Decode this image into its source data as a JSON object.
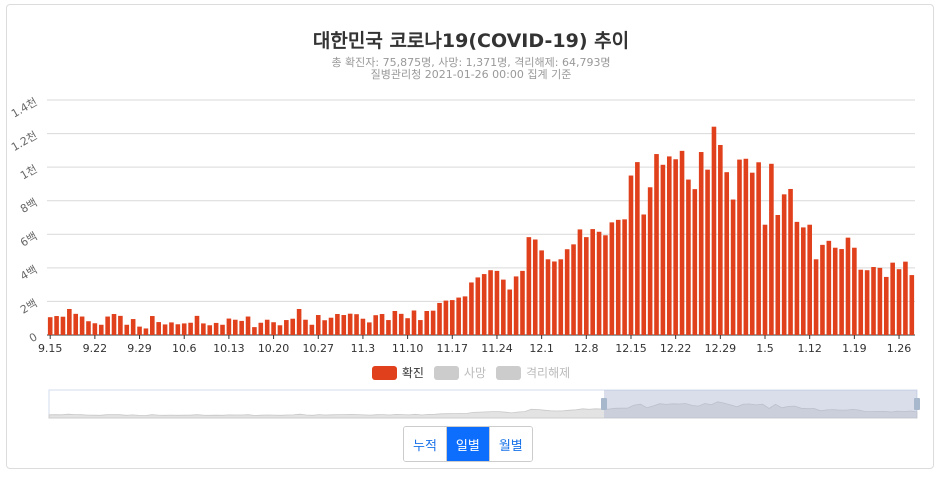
{
  "title": "대한민국 코로나19(COVID-19) 추이",
  "subtitle_line1": "총 확진자: 75,875명, 사망: 1,371명, 격리해제: 64,793명",
  "subtitle_line2": "질병관리청 2021-01-26 00:00 집계 기준",
  "legend": [
    {
      "name": "확진",
      "color": "#e0401c",
      "active": true
    },
    {
      "name": "사망",
      "color": "#cccccc",
      "active": false
    },
    {
      "name": "격리해제",
      "color": "#cccccc",
      "active": false
    }
  ],
  "buttons": {
    "cumulative": "누적",
    "daily": "일별",
    "monthly": "월별",
    "active": "daily"
  },
  "colors": {
    "bar": "#e0401c",
    "grid": "#d9d9d9",
    "active_button": "#0d6efd"
  },
  "chart_data": {
    "type": "bar",
    "ylim": [
      0,
      1400
    ],
    "ytick_values": [
      0,
      200,
      400,
      600,
      800,
      1000,
      1200,
      1400
    ],
    "ytick_labels": [
      "0",
      "2백",
      "4백",
      "6백",
      "8백",
      "1천",
      "1.2천",
      "1.4천"
    ],
    "xtick_labels": [
      "9.15",
      "9.22",
      "9.29",
      "10.6",
      "10.13",
      "10.20",
      "10.27",
      "11.3",
      "11.10",
      "11.17",
      "11.24",
      "12.1",
      "12.8",
      "12.15",
      "12.22",
      "12.29",
      "1.5",
      "1.12",
      "1.19",
      "1.26"
    ],
    "grid": true,
    "series": [
      {
        "name": "확진",
        "values": [
          106,
          113,
          109,
          155,
          126,
          110,
          82,
          70,
          61,
          110,
          125,
          114,
          61,
          95,
          50,
          39,
          113,
          77,
          63,
          75,
          64,
          69,
          73,
          114,
          69,
          58,
          72,
          61,
          98,
          91,
          84,
          110,
          47,
          73,
          91,
          76,
          58,
          89,
          97,
          155,
          91,
          61,
          119,
          88,
          103,
          125,
          119,
          127,
          124,
          97,
          75,
          118,
          125,
          89,
          143,
          126,
          100,
          146,
          89,
          143,
          145,
          191,
          205,
          208,
          223,
          230,
          313,
          343,
          363,
          386,
          382,
          330,
          271,
          349,
          382,
          583,
          569,
          504,
          451,
          438,
          451,
          511,
          540,
          629,
          583,
          631,
          615,
          594,
          671,
          686,
          689,
          950,
          1030,
          718,
          880,
          1078,
          1014,
          1064,
          1047,
          1097,
          926,
          869,
          1090,
          985,
          1241,
          1132,
          970,
          807,
          1045,
          1050,
          967,
          1029,
          657,
          1020,
          715,
          838,
          870,
          674,
          641,
          657,
          451,
          537,
          561,
          520,
          512,
          580,
          520,
          389,
          386,
          405,
          400,
          346,
          431,
          392,
          437,
          357
        ]
      }
    ]
  }
}
